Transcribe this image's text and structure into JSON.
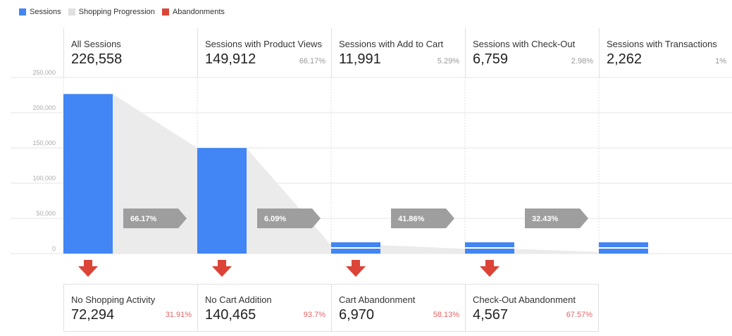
{
  "legend": [
    {
      "label": "Sessions",
      "color": "#4285f4"
    },
    {
      "label": "Shopping Progression",
      "color": "#e0e0e0"
    },
    {
      "label": "Abandonments",
      "color": "#db4437"
    }
  ],
  "colors": {
    "sessions": "#4285f4",
    "progression": "#ebebeb",
    "abandonment": "#db4437",
    "arrow": "#9e9e9e"
  },
  "chart_data": {
    "type": "bar",
    "ylim": [
      0,
      250000
    ],
    "yticks": [
      "250,000",
      "200,000",
      "150,000",
      "100,000",
      "50,000",
      "0"
    ],
    "grid": true,
    "categories": [
      "All Sessions",
      "Sessions with Product Views",
      "Sessions with Add to Cart",
      "Sessions with Check-Out",
      "Sessions with Transactions"
    ],
    "values": [
      226558,
      149912,
      11991,
      6759,
      2262
    ],
    "progression_pct": [
      "66.17%",
      "6.09%",
      "41.86%",
      "32.43%"
    ]
  },
  "stages": [
    {
      "title": "All Sessions",
      "value": "226,558",
      "pct": ""
    },
    {
      "title": "Sessions with Product Views",
      "value": "149,912",
      "pct": "66.17%"
    },
    {
      "title": "Sessions with Add to Cart",
      "value": "11,991",
      "pct": "5.29%"
    },
    {
      "title": "Sessions with Check-Out",
      "value": "6,759",
      "pct": "2.98%"
    },
    {
      "title": "Sessions with Transactions",
      "value": "2,262",
      "pct": "1%"
    }
  ],
  "abandonments": [
    {
      "title": "No Shopping Activity",
      "value": "72,294",
      "pct": "31.91%"
    },
    {
      "title": "No Cart Addition",
      "value": "140,465",
      "pct": "93.7%"
    },
    {
      "title": "Cart Abandonment",
      "value": "6,970",
      "pct": "58.13%"
    },
    {
      "title": "Check-Out Abandonment",
      "value": "4,567",
      "pct": "67.57%"
    }
  ]
}
